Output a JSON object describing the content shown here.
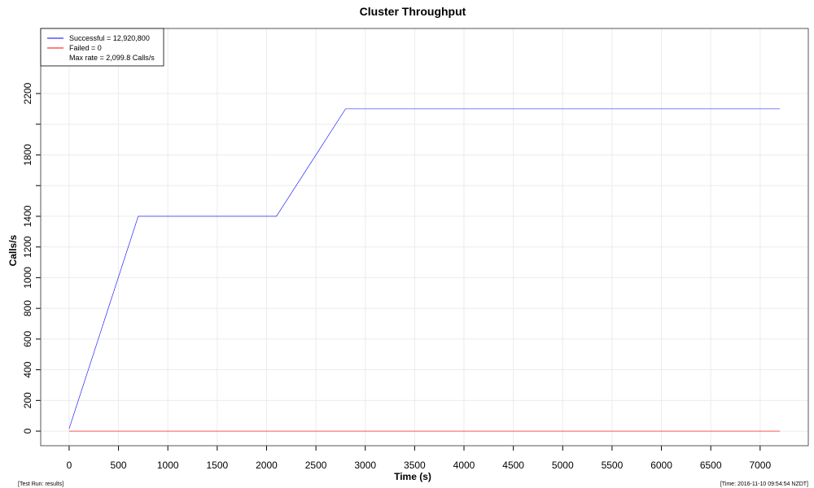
{
  "chart_data": {
    "type": "line",
    "title": "Cluster Throughput",
    "x_label": "Time (s)",
    "y_label": "Calls/s",
    "series": [
      {
        "name": "Successful = 12,920,800",
        "color": "#0000ff",
        "x": [
          0,
          700,
          2100,
          2800,
          7200
        ],
        "values": [
          16,
          1400,
          1400,
          2100,
          2100
        ]
      },
      {
        "name": "Failed = 0",
        "color": "#ff0000",
        "x": [
          0,
          7200
        ],
        "values": [
          0,
          0
        ]
      }
    ],
    "legend_note": "Max rate = 2,099.8 Calls/s",
    "legend_position": "top-left",
    "xlim": [
      -288,
      7488
    ],
    "ylim": [
      -95,
      2624
    ],
    "xticks": [
      0,
      500,
      1000,
      1500,
      2000,
      2500,
      3000,
      3500,
      4000,
      4500,
      5000,
      5500,
      6000,
      6500,
      7000
    ],
    "yticks": [
      0,
      200,
      400,
      600,
      800,
      1000,
      1200,
      1400,
      1800,
      2200
    ],
    "y_unlabeled_ticks": [
      1600,
      2000
    ],
    "grid": true,
    "footer_left": "[Test Run: results]",
    "footer_right": "[Time: 2016-11-10 09:54:54 NZDT]"
  }
}
